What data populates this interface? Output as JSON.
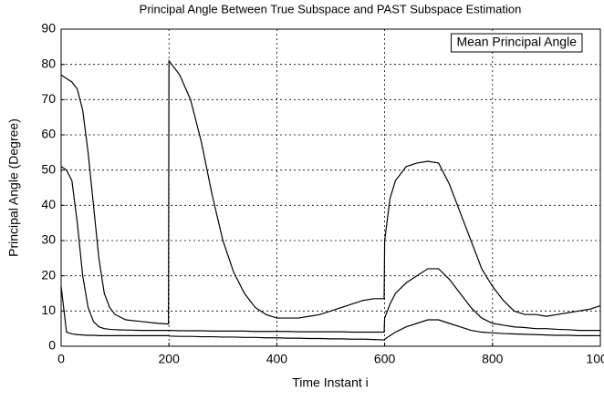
{
  "chart_data": {
    "type": "line",
    "title": "Principal Angle Between True Subspace and PAST Subspace Estimation",
    "x_label": "Time Instant i",
    "y_label": "Principal Angle (Degree)",
    "x": [
      0,
      10,
      20,
      30,
      40,
      50,
      60,
      70,
      80,
      90,
      100,
      120,
      150,
      180,
      199,
      200,
      220,
      240,
      260,
      280,
      300,
      320,
      340,
      360,
      380,
      400,
      420,
      440,
      460,
      480,
      500,
      520,
      540,
      560,
      580,
      599,
      600,
      610,
      620,
      640,
      660,
      680,
      700,
      720,
      740,
      760,
      780,
      800,
      820,
      840,
      860,
      880,
      900,
      920,
      940,
      960,
      980,
      1000
    ],
    "series": [
      {
        "name": "Mean Principal Angle",
        "color": "#000000",
        "values": [
          77,
          76,
          75,
          73,
          67,
          55,
          40,
          25,
          15,
          11,
          9,
          7.5,
          7,
          6.5,
          6.3,
          81,
          77,
          70,
          58,
          43,
          30,
          21,
          15,
          11,
          9,
          8,
          8,
          8,
          8.5,
          9,
          10,
          11,
          12,
          13,
          13.5,
          13.5,
          30,
          42,
          47,
          51,
          52,
          52.5,
          52,
          46,
          38,
          30,
          22,
          17,
          13,
          10,
          9,
          9,
          8.5,
          9,
          9.5,
          10,
          10.5,
          11.5
        ]
      },
      {
        "color": "#000000",
        "values": [
          51,
          50,
          47,
          35,
          20,
          11,
          7,
          5.5,
          5,
          4.8,
          4.7,
          4.6,
          4.5,
          4.5,
          4.5,
          4.5,
          4.4,
          4.4,
          4.4,
          4.3,
          4.3,
          4.3,
          4.3,
          4.2,
          4.2,
          4.2,
          4.2,
          4.1,
          4.1,
          4.1,
          4.1,
          4.1,
          4,
          4,
          4,
          4,
          8,
          12,
          15,
          18,
          20,
          22,
          22,
          19,
          15,
          11,
          8,
          6.5,
          6,
          5.5,
          5.3,
          5,
          5,
          4.8,
          4.7,
          4.5,
          4.5,
          4.5
        ]
      },
      {
        "color": "#000000",
        "values": [
          17,
          4,
          3.5,
          3.3,
          3.2,
          3.1,
          3.1,
          3,
          3,
          3,
          3,
          3,
          3,
          3,
          3,
          2.9,
          2.8,
          2.8,
          2.7,
          2.7,
          2.6,
          2.6,
          2.5,
          2.5,
          2.4,
          2.4,
          2.3,
          2.3,
          2.2,
          2.2,
          2.1,
          2.1,
          2,
          2,
          1.9,
          1.8,
          2,
          3,
          4,
          5.5,
          6.5,
          7.5,
          7.5,
          6.5,
          5.5,
          4.5,
          4,
          3.8,
          3.6,
          3.5,
          3.4,
          3.3,
          3.2,
          3.1,
          3.1,
          3,
          3,
          3
        ]
      }
    ],
    "xlim": [
      0,
      1000
    ],
    "xticks": [
      0,
      200,
      400,
      600,
      800,
      1000
    ],
    "ylim": [
      0,
      90
    ],
    "yticks": [
      0,
      10,
      20,
      30,
      40,
      50,
      60,
      70,
      80,
      90
    ],
    "grid": true,
    "legend": "upper right"
  }
}
